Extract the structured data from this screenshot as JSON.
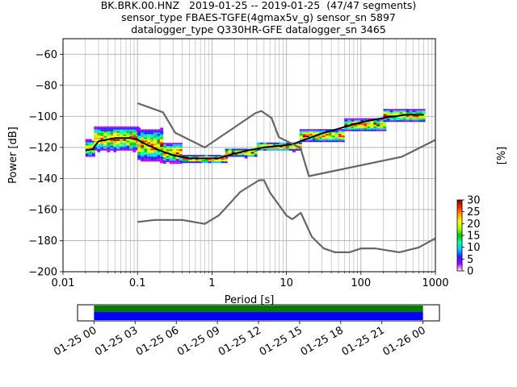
{
  "title_lines": [
    "BK.BRK.00.HNZ   2019-01-25 -- 2019-01-25  (47/47 segments)",
    "sensor_type FBAES-TGFE(4gmax5v_g) sensor_sn 5897",
    "datalogger_type Q330HR-GFE datalogger_sn 3465"
  ],
  "chart_data": {
    "type": "heatmap",
    "xlabel": "Period [s]",
    "ylabel": "Power [dB]",
    "x_scale": "log",
    "xlim": [
      0.01,
      1000
    ],
    "ylim": [
      -200,
      -50
    ],
    "x_ticks": [
      {
        "value": 0.01,
        "label": "0.01"
      },
      {
        "value": 0.1,
        "label": "0.1"
      },
      {
        "value": 1,
        "label": "1"
      },
      {
        "value": 10,
        "label": "10"
      },
      {
        "value": 100,
        "label": "100"
      },
      {
        "value": 1000,
        "label": "1000"
      }
    ],
    "y_ticks": [
      {
        "value": -200,
        "label": "−200"
      },
      {
        "value": -180,
        "label": "−180"
      },
      {
        "value": -160,
        "label": "−160"
      },
      {
        "value": -140,
        "label": "−140"
      },
      {
        "value": -120,
        "label": "−120"
      },
      {
        "value": -100,
        "label": "−100"
      },
      {
        "value": -80,
        "label": "−80"
      },
      {
        "value": -60,
        "label": "−60"
      }
    ],
    "grid": true,
    "colorbar": {
      "label": "[%]",
      "range": [
        0,
        30
      ],
      "ticks": [
        {
          "value": 0,
          "label": "0"
        },
        {
          "value": 5,
          "label": "5"
        },
        {
          "value": 10,
          "label": "10"
        },
        {
          "value": 15,
          "label": "15"
        },
        {
          "value": 20,
          "label": "20"
        },
        {
          "value": 25,
          "label": "25"
        },
        {
          "value": 30,
          "label": "30"
        }
      ],
      "colors": [
        "#ffffff",
        "#b000ff",
        "#2020ff",
        "#00c8ff",
        "#00ffaa",
        "#00cc00",
        "#b4ff00",
        "#ffff00",
        "#ffa000",
        "#ff2000",
        "#800000"
      ]
    },
    "density_bands": [
      {
        "x_range": [
          0.02,
          0.026
        ],
        "y_center": -120,
        "spread": 4
      },
      {
        "x_range": [
          0.026,
          0.1
        ],
        "y_center": -114,
        "spread": 6
      },
      {
        "x_range": [
          0.1,
          0.22
        ],
        "y_center": -118,
        "spread": 8
      },
      {
        "x_range": [
          0.22,
          0.4
        ],
        "y_center": -123,
        "spread": 5
      },
      {
        "x_range": [
          0.4,
          1.5
        ],
        "y_center": -127,
        "spread": 2
      },
      {
        "x_range": [
          1.5,
          4
        ],
        "y_center": -123,
        "spread": 2
      },
      {
        "x_range": [
          4,
          15
        ],
        "y_center": -119,
        "spread": 2
      },
      {
        "x_range": [
          15,
          60
        ],
        "y_center": -112,
        "spread": 3
      },
      {
        "x_range": [
          60,
          200
        ],
        "y_center": -105,
        "spread": 3
      },
      {
        "x_range": [
          200,
          700
        ],
        "y_center": -99,
        "spread": 3
      }
    ],
    "series": [
      {
        "role": "mode",
        "color": "#000000",
        "points": [
          [
            0.02,
            -122
          ],
          [
            0.025,
            -121
          ],
          [
            0.03,
            -116
          ],
          [
            0.05,
            -114
          ],
          [
            0.08,
            -114
          ],
          [
            0.1,
            -115
          ],
          [
            0.13,
            -118
          ],
          [
            0.2,
            -122
          ],
          [
            0.3,
            -125
          ],
          [
            0.5,
            -127
          ],
          [
            0.8,
            -127
          ],
          [
            1.2,
            -127
          ],
          [
            2,
            -124
          ],
          [
            3,
            -122
          ],
          [
            5,
            -120
          ],
          [
            8,
            -119
          ],
          [
            12,
            -118
          ],
          [
            20,
            -114
          ],
          [
            30,
            -111
          ],
          [
            50,
            -108
          ],
          [
            80,
            -105
          ],
          [
            120,
            -103
          ],
          [
            200,
            -101
          ],
          [
            400,
            -99
          ],
          [
            700,
            -99
          ]
        ]
      },
      {
        "role": "high-noise-model",
        "color": "#666666",
        "points": [
          [
            0.1,
            -91.5
          ],
          [
            0.22,
            -97.4
          ],
          [
            0.32,
            -110.5
          ],
          [
            0.8,
            -120
          ],
          [
            3.8,
            -98
          ],
          [
            4.6,
            -96.5
          ],
          [
            6.3,
            -101
          ],
          [
            7.9,
            -113.4
          ],
          [
            15.4,
            -120.3
          ],
          [
            20,
            -138.5
          ],
          [
            354.8,
            -126
          ],
          [
            10000,
            -91
          ]
        ]
      },
      {
        "role": "low-noise-model",
        "color": "#666666",
        "points": [
          [
            0.1,
            -168
          ],
          [
            0.17,
            -166.7
          ],
          [
            0.4,
            -166.7
          ],
          [
            0.8,
            -169.2
          ],
          [
            1.24,
            -163.7
          ],
          [
            2.4,
            -148.6
          ],
          [
            4.3,
            -141.1
          ],
          [
            5,
            -141.1
          ],
          [
            6,
            -149
          ],
          [
            10,
            -163.8
          ],
          [
            12,
            -166.2
          ],
          [
            15.6,
            -162.1
          ],
          [
            21.9,
            -177.5
          ],
          [
            31.6,
            -185
          ],
          [
            45,
            -187.5
          ],
          [
            70,
            -187.5
          ],
          [
            101,
            -185
          ],
          [
            154,
            -185
          ],
          [
            328,
            -187.5
          ],
          [
            600,
            -184.4
          ],
          [
            10000,
            -151.9
          ]
        ]
      }
    ],
    "coverage": {
      "x_ticks": [
        "01-25 00",
        "01-25 03",
        "01-25 06",
        "01-25 09",
        "01-25 12",
        "01-25 15",
        "01-25 18",
        "01-25 21",
        "01-26 00"
      ],
      "start_hour": 0,
      "end_hour": 24,
      "span_hours": [
        -1.2,
        25.2
      ],
      "bars": [
        {
          "role": "data",
          "color": "#008000",
          "from_hour": 0,
          "to_hour": 24
        },
        {
          "role": "ppsd",
          "color": "#0000ff",
          "from_hour": 0,
          "to_hour": 24
        }
      ]
    }
  }
}
